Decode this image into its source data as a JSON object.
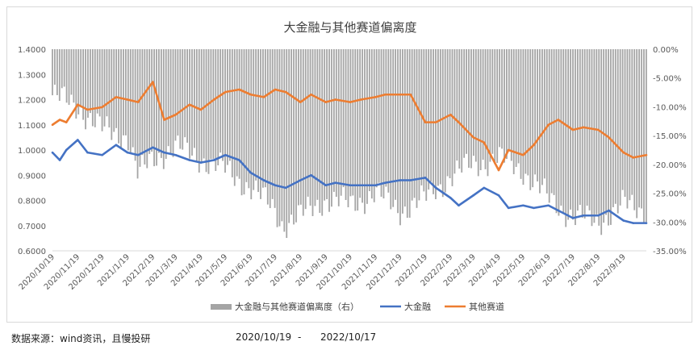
{
  "chart_data": {
    "type": "bar+line",
    "title": "大金融与其他赛道偏离度",
    "left_axis": {
      "ylim": [
        0.6,
        1.4
      ],
      "ticks": [
        "0.6000",
        "0.7000",
        "0.8000",
        "0.9000",
        "1.0000",
        "1.1000",
        "1.2000",
        "1.3000",
        "1.4000"
      ]
    },
    "right_axis": {
      "ylim": [
        -35,
        0
      ],
      "ticks": [
        "0.00%",
        "-5.00%",
        "-10.00%",
        "-15.00%",
        "-20.00%",
        "-25.00%",
        "-30.00%",
        "-35.00%"
      ]
    },
    "x_ticks": [
      "2020/10/19",
      "2020/11/19",
      "2020/12/19",
      "2021/1/19",
      "2021/2/19",
      "2021/3/19",
      "2021/4/19",
      "2021/5/19",
      "2021/6/19",
      "2021/7/19",
      "2021/8/19",
      "2021/9/19",
      "2021/10/19",
      "2021/11/19",
      "2021/12/19",
      "2022/1/19",
      "2022/2/19",
      "2022/3/19",
      "2022/4/19",
      "2022/5/19",
      "2022/6/19",
      "2022/7/19",
      "2022/8/19",
      "2022/9/19"
    ],
    "x_range": [
      "2020/10/19",
      "2022/10/17"
    ],
    "grid": false,
    "legend_position": "bottom",
    "series": [
      {
        "name": "大金融与其他赛道偏离度（右）",
        "kind": "bar",
        "axis": "right",
        "color": "#a5a5a5",
        "x": [
          "2020/10/19",
          "2020/11/19",
          "2020/12/19",
          "2021/1/19",
          "2021/2/1",
          "2021/2/19",
          "2021/3/19",
          "2021/4/19",
          "2021/5/19",
          "2021/6/19",
          "2021/7/19",
          "2021/7/28",
          "2021/8/19",
          "2021/9/19",
          "2021/10/19",
          "2021/11/19",
          "2021/12/19",
          "2022/1/19",
          "2022/2/19",
          "2022/3/19",
          "2022/4/19",
          "2022/5/19",
          "2022/6/19",
          "2022/7/19",
          "2022/8/19",
          "2022/9/19",
          "2022/10/17"
        ],
        "values": [
          -8,
          -10,
          -14,
          -15,
          -22,
          -19,
          -17,
          -19,
          -21,
          -24,
          -28,
          -30.5,
          -29,
          -26,
          -27,
          -25,
          -28,
          -26,
          -22,
          -20,
          -19,
          -21,
          -26,
          -29,
          -30,
          -27,
          -28
        ]
      },
      {
        "name": "大金融",
        "kind": "line",
        "axis": "left",
        "color": "#4472c4",
        "x": [
          "2020/10/19",
          "2020/10/28",
          "2020/11/5",
          "2020/11/19",
          "2020/12/1",
          "2020/12/19",
          "2021/1/5",
          "2021/1/19",
          "2021/2/1",
          "2021/2/19",
          "2021/3/5",
          "2021/3/19",
          "2021/4/5",
          "2021/4/19",
          "2021/5/5",
          "2021/5/19",
          "2021/6/5",
          "2021/6/19",
          "2021/7/5",
          "2021/7/19",
          "2021/8/1",
          "2021/8/19",
          "2021/9/1",
          "2021/9/19",
          "2021/10/1",
          "2021/10/19",
          "2021/11/1",
          "2021/11/19",
          "2021/12/1",
          "2021/12/19",
          "2022/1/1",
          "2022/1/19",
          "2022/2/1",
          "2022/2/19",
          "2022/3/1",
          "2022/3/19",
          "2022/4/1",
          "2022/4/19",
          "2022/5/1",
          "2022/5/19",
          "2022/6/1",
          "2022/6/19",
          "2022/7/1",
          "2022/7/19",
          "2022/8/1",
          "2022/8/19",
          "2022/9/1",
          "2022/9/19",
          "2022/10/1",
          "2022/10/17"
        ],
        "values": [
          0.99,
          0.96,
          1.0,
          1.04,
          0.99,
          0.98,
          1.02,
          0.99,
          0.98,
          1.01,
          0.99,
          0.98,
          0.96,
          0.95,
          0.96,
          0.98,
          0.96,
          0.91,
          0.88,
          0.86,
          0.85,
          0.88,
          0.9,
          0.86,
          0.87,
          0.86,
          0.86,
          0.86,
          0.87,
          0.88,
          0.88,
          0.89,
          0.85,
          0.81,
          0.78,
          0.82,
          0.85,
          0.82,
          0.77,
          0.78,
          0.77,
          0.78,
          0.76,
          0.73,
          0.74,
          0.74,
          0.76,
          0.72,
          0.71,
          0.71
        ]
      },
      {
        "name": "其他赛道",
        "kind": "line",
        "axis": "left",
        "color": "#ed7d31",
        "x": [
          "2020/10/19",
          "2020/10/28",
          "2020/11/5",
          "2020/11/19",
          "2020/12/1",
          "2020/12/19",
          "2021/1/5",
          "2021/1/19",
          "2021/2/1",
          "2021/2/19",
          "2021/3/5",
          "2021/3/19",
          "2021/4/5",
          "2021/4/19",
          "2021/5/5",
          "2021/5/19",
          "2021/6/5",
          "2021/6/19",
          "2021/7/5",
          "2021/7/19",
          "2021/8/1",
          "2021/8/19",
          "2021/9/1",
          "2021/9/19",
          "2021/10/1",
          "2021/10/19",
          "2021/11/1",
          "2021/11/19",
          "2021/12/1",
          "2021/12/19",
          "2022/1/1",
          "2022/1/19",
          "2022/2/1",
          "2022/2/19",
          "2022/3/1",
          "2022/3/19",
          "2022/4/1",
          "2022/4/19",
          "2022/5/1",
          "2022/5/19",
          "2022/6/1",
          "2022/6/19",
          "2022/7/1",
          "2022/7/19",
          "2022/8/1",
          "2022/8/19",
          "2022/9/1",
          "2022/9/19",
          "2022/10/1",
          "2022/10/17"
        ],
        "values": [
          1.1,
          1.12,
          1.11,
          1.18,
          1.16,
          1.17,
          1.21,
          1.2,
          1.19,
          1.27,
          1.12,
          1.14,
          1.18,
          1.16,
          1.2,
          1.23,
          1.24,
          1.22,
          1.21,
          1.24,
          1.23,
          1.19,
          1.22,
          1.19,
          1.2,
          1.19,
          1.2,
          1.21,
          1.22,
          1.22,
          1.22,
          1.11,
          1.11,
          1.14,
          1.11,
          1.05,
          1.03,
          0.92,
          1.0,
          0.98,
          1.02,
          1.1,
          1.12,
          1.08,
          1.09,
          1.08,
          1.05,
          0.99,
          0.97,
          0.98
        ]
      }
    ]
  },
  "footer": {
    "source": "数据来源：wind资讯，且慢投研",
    "range_start": "2020/10/19",
    "range_sep": "-",
    "range_end": "2022/10/17"
  }
}
